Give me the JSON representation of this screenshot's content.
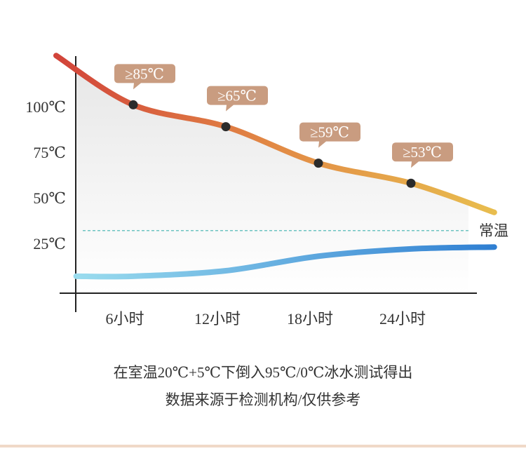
{
  "chart_data": {
    "type": "line",
    "xlim": [
      2.3,
      28.3
    ],
    "ylim": [
      -2.3,
      127.7
    ],
    "xticks": [
      {
        "value": 6,
        "label": "6小时"
      },
      {
        "value": 12,
        "label": "12小时"
      },
      {
        "value": 18,
        "label": "18小时"
      },
      {
        "value": 24,
        "label": "24小时"
      }
    ],
    "yticks": [
      {
        "value": 25,
        "label": "25℃"
      },
      {
        "value": 50,
        "label": "50℃"
      },
      {
        "value": 75,
        "label": "75℃"
      },
      {
        "value": 100,
        "label": "100℃"
      }
    ],
    "series": [
      {
        "x": [
          1,
          6,
          12,
          18,
          24,
          29.4
        ],
        "values": [
          128,
          101,
          89,
          69,
          58,
          42
        ],
        "color": [
          "#d2443a",
          "#e28a45",
          "#e8bd4e"
        ],
        "annotations": [
          "≥85℃",
          "≥65℃",
          "≥59℃",
          "≥53℃"
        ]
      },
      {
        "x": [
          2.3,
          6,
          12,
          18,
          24,
          29.4
        ],
        "values": [
          7,
          7,
          10,
          18,
          22,
          23
        ],
        "color": [
          "#9adcee",
          "#2f7fd2"
        ]
      }
    ],
    "reference_line": {
      "value": 32,
      "label": "常温",
      "color": "#3fb3b0"
    },
    "caption": [
      "在室温20℃+5℃下倒入95℃/0℃冰水测试得出",
      "数据来源于检测机构/仅供参考"
    ]
  }
}
